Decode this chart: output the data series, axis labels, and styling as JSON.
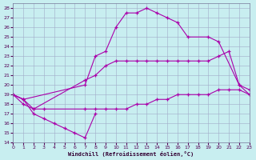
{
  "background_color": "#c8eef0",
  "grid_color": "#a0aac8",
  "line_color": "#aa00aa",
  "xlim": [
    0,
    23
  ],
  "ylim": [
    14,
    28.5
  ],
  "xticks": [
    0,
    1,
    2,
    3,
    4,
    5,
    6,
    7,
    8,
    9,
    10,
    11,
    12,
    13,
    14,
    15,
    16,
    17,
    18,
    19,
    20,
    21,
    22,
    23
  ],
  "yticks": [
    14,
    15,
    16,
    17,
    18,
    19,
    20,
    21,
    22,
    23,
    24,
    25,
    26,
    27,
    28
  ],
  "xlabel": "Windchill (Refroidissement éolien,°C)",
  "figsize": [
    3.2,
    2.0
  ],
  "dpi": 100,
  "lines": [
    {
      "x": [
        0,
        1,
        2,
        3,
        4,
        5,
        6,
        7,
        8
      ],
      "y": [
        19,
        18.5,
        17,
        16.5,
        16,
        15.5,
        15,
        14.5,
        17
      ]
    },
    {
      "x": [
        0,
        1,
        2,
        3,
        7,
        8,
        9,
        10,
        11,
        12,
        13,
        14,
        15,
        16,
        17,
        18,
        19,
        20,
        21,
        22,
        23
      ],
      "y": [
        19,
        18,
        17.5,
        17.5,
        17.5,
        17.5,
        17.5,
        17.5,
        17.5,
        18,
        18,
        18.5,
        18.5,
        19,
        19,
        19,
        19,
        19.5,
        19.5,
        19.5,
        19
      ]
    },
    {
      "x": [
        0,
        1,
        2,
        7,
        8,
        9,
        10,
        11,
        12,
        13,
        14,
        15,
        16,
        17,
        18,
        19,
        20,
        21,
        22,
        23
      ],
      "y": [
        19,
        18.5,
        17.5,
        20.5,
        21,
        22,
        22.5,
        22.5,
        22.5,
        22.5,
        22.5,
        22.5,
        22.5,
        22.5,
        22.5,
        22.5,
        23,
        23.5,
        20,
        19
      ]
    },
    {
      "x": [
        0,
        1,
        7,
        8,
        9,
        10,
        11,
        12,
        13,
        14,
        15,
        16,
        17,
        19,
        20,
        22,
        23
      ],
      "y": [
        19,
        18.5,
        20,
        23,
        23.5,
        26,
        27.5,
        27.5,
        28,
        27.5,
        27,
        26.5,
        25,
        25,
        24.5,
        20,
        19.5
      ]
    }
  ]
}
